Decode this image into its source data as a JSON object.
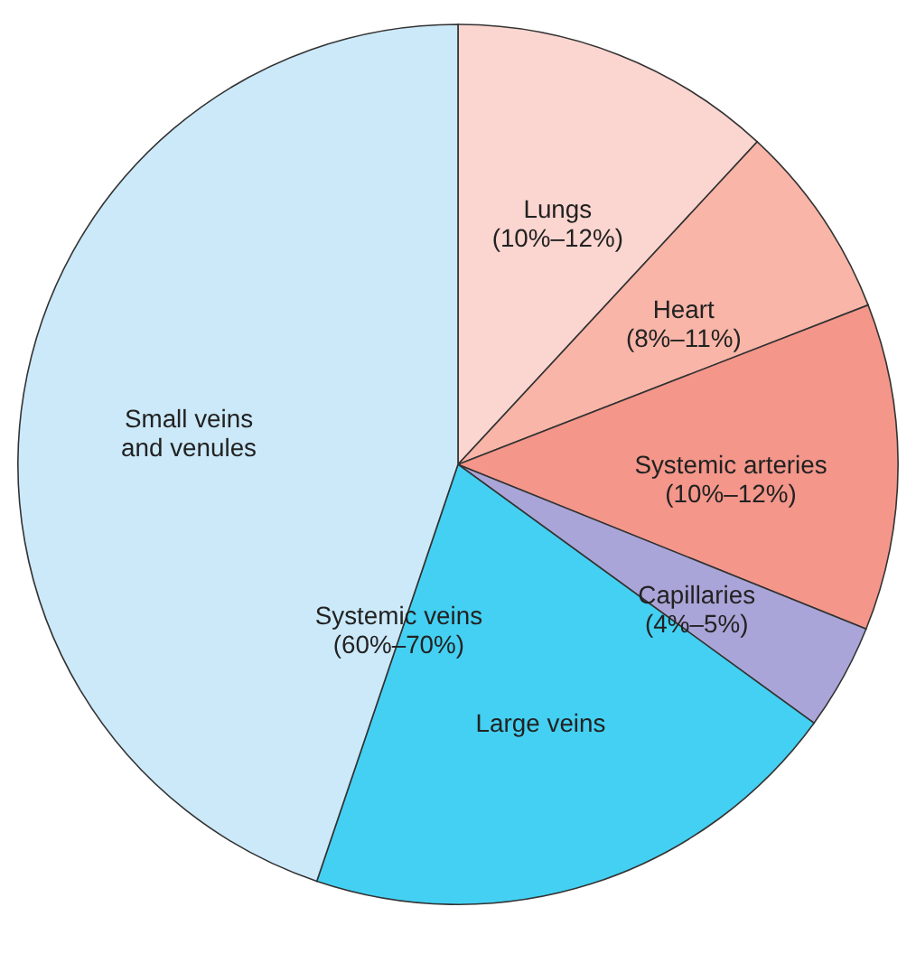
{
  "chart_data": {
    "type": "pie",
    "categories": [
      "Lungs\n(10%–12%)",
      "Heart\n(8%–11%)",
      "Systemic arteries\n(10%–12%)",
      "Capillaries\n(4%–5%)",
      "Large veins",
      "Small veins\nand venules"
    ],
    "values": [
      11.9,
      7.2,
      12.0,
      3.9,
      20.2,
      44.8
    ],
    "colors": [
      "#fbd5d0",
      "#f8b5a8",
      "#f4968a",
      "#aaa5d8",
      "#44d0f2",
      "#cce9f9"
    ],
    "annotations": [
      "Systemic veins\n(60%–70%)"
    ],
    "legend": false
  }
}
